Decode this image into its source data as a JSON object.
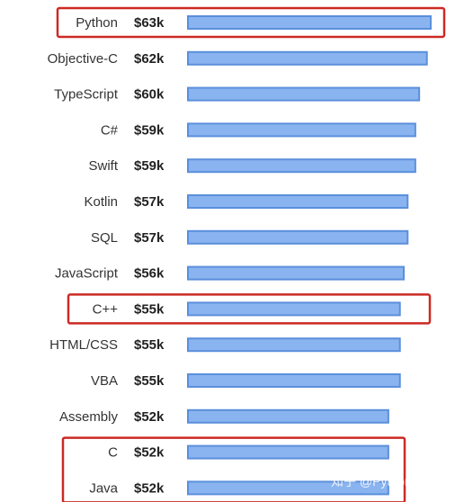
{
  "chart_data": {
    "type": "bar",
    "orientation": "horizontal",
    "categories": [
      "Python",
      "Objective-C",
      "TypeScript",
      "C#",
      "Swift",
      "Kotlin",
      "SQL",
      "JavaScript",
      "C++",
      "HTML/CSS",
      "VBA",
      "Assembly",
      "C",
      "Java"
    ],
    "values": [
      63,
      62,
      60,
      59,
      59,
      57,
      57,
      56,
      55,
      55,
      55,
      52,
      52,
      52
    ],
    "value_labels": [
      "$63k",
      "$62k",
      "$60k",
      "$59k",
      "$59k",
      "$57k",
      "$57k",
      "$56k",
      "$55k",
      "$55k",
      "$55k",
      "$52k",
      "$52k",
      "$52k"
    ],
    "title": "",
    "xlabel": "",
    "ylabel": "",
    "grid": false,
    "highlighted_groups": [
      [
        "Python"
      ],
      [
        "C++"
      ],
      [
        "C",
        "Java"
      ]
    ],
    "highlight_color": "#cc2a24",
    "bar_color": "#8ab4ef",
    "bar_edge_color": "#5b8fdc"
  },
  "watermark": "知乎 @Python-Jack"
}
